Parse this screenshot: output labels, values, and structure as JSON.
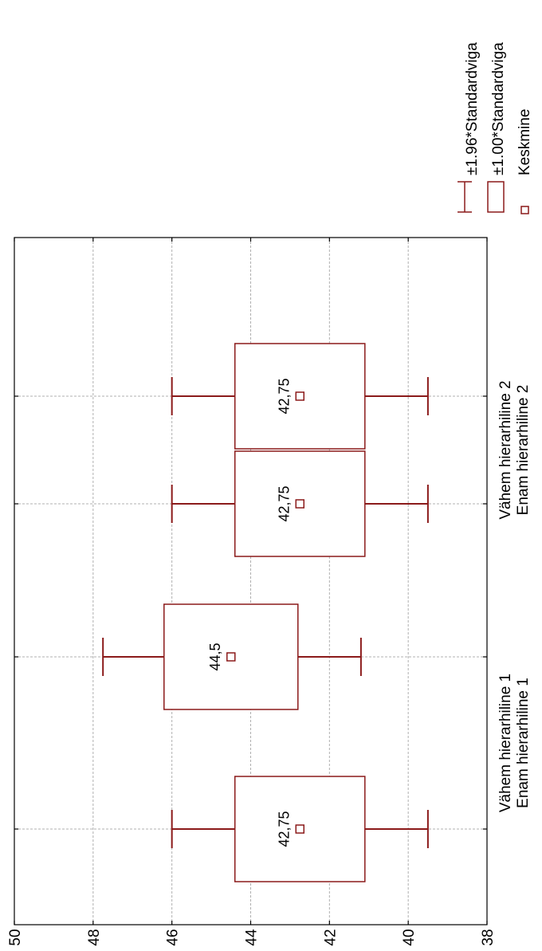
{
  "chart_data": {
    "type": "box",
    "orientation": "rotated-90",
    "categories": [
      [
        "Vähem hierarhiline 1",
        "Enam hierarhiline 1"
      ],
      [
        "Vähem hierarhiline 2",
        "Enam hierarhiline 2"
      ]
    ],
    "boxes": [
      {
        "mean": 42.75,
        "label": "42,75",
        "se100_low": 41.1,
        "se100_high": 44.4,
        "se196_low": 39.5,
        "se196_high": 46.0
      },
      {
        "mean": 44.5,
        "label": "44,5",
        "se100_low": 42.8,
        "se100_high": 46.2,
        "se196_low": 41.2,
        "se196_high": 47.75
      },
      {
        "mean": 42.75,
        "label": "42,75",
        "se100_low": 41.1,
        "se100_high": 44.4,
        "se196_low": 39.5,
        "se196_high": 46.0
      },
      {
        "mean": 42.75,
        "label": "42,75",
        "se100_low": 41.1,
        "se100_high": 44.4,
        "se196_low": 39.5,
        "se196_high": 46.0
      }
    ],
    "value_axis": {
      "min": 38,
      "max": 50,
      "ticks": [
        "38",
        "40",
        "42",
        "44",
        "46",
        "48",
        "50"
      ]
    },
    "grid": true,
    "legend": {
      "placement": "top-right",
      "entries": [
        {
          "label": "±1.96*Standardviga",
          "symbol": "whisker"
        },
        {
          "label": "±1.00*Standardviga",
          "symbol": "box"
        },
        {
          "label": "Keskmine",
          "symbol": "point"
        }
      ]
    },
    "colors": {
      "series": "#8b1a1a",
      "grid": "#b0b0b0",
      "axis": "#000000"
    }
  }
}
